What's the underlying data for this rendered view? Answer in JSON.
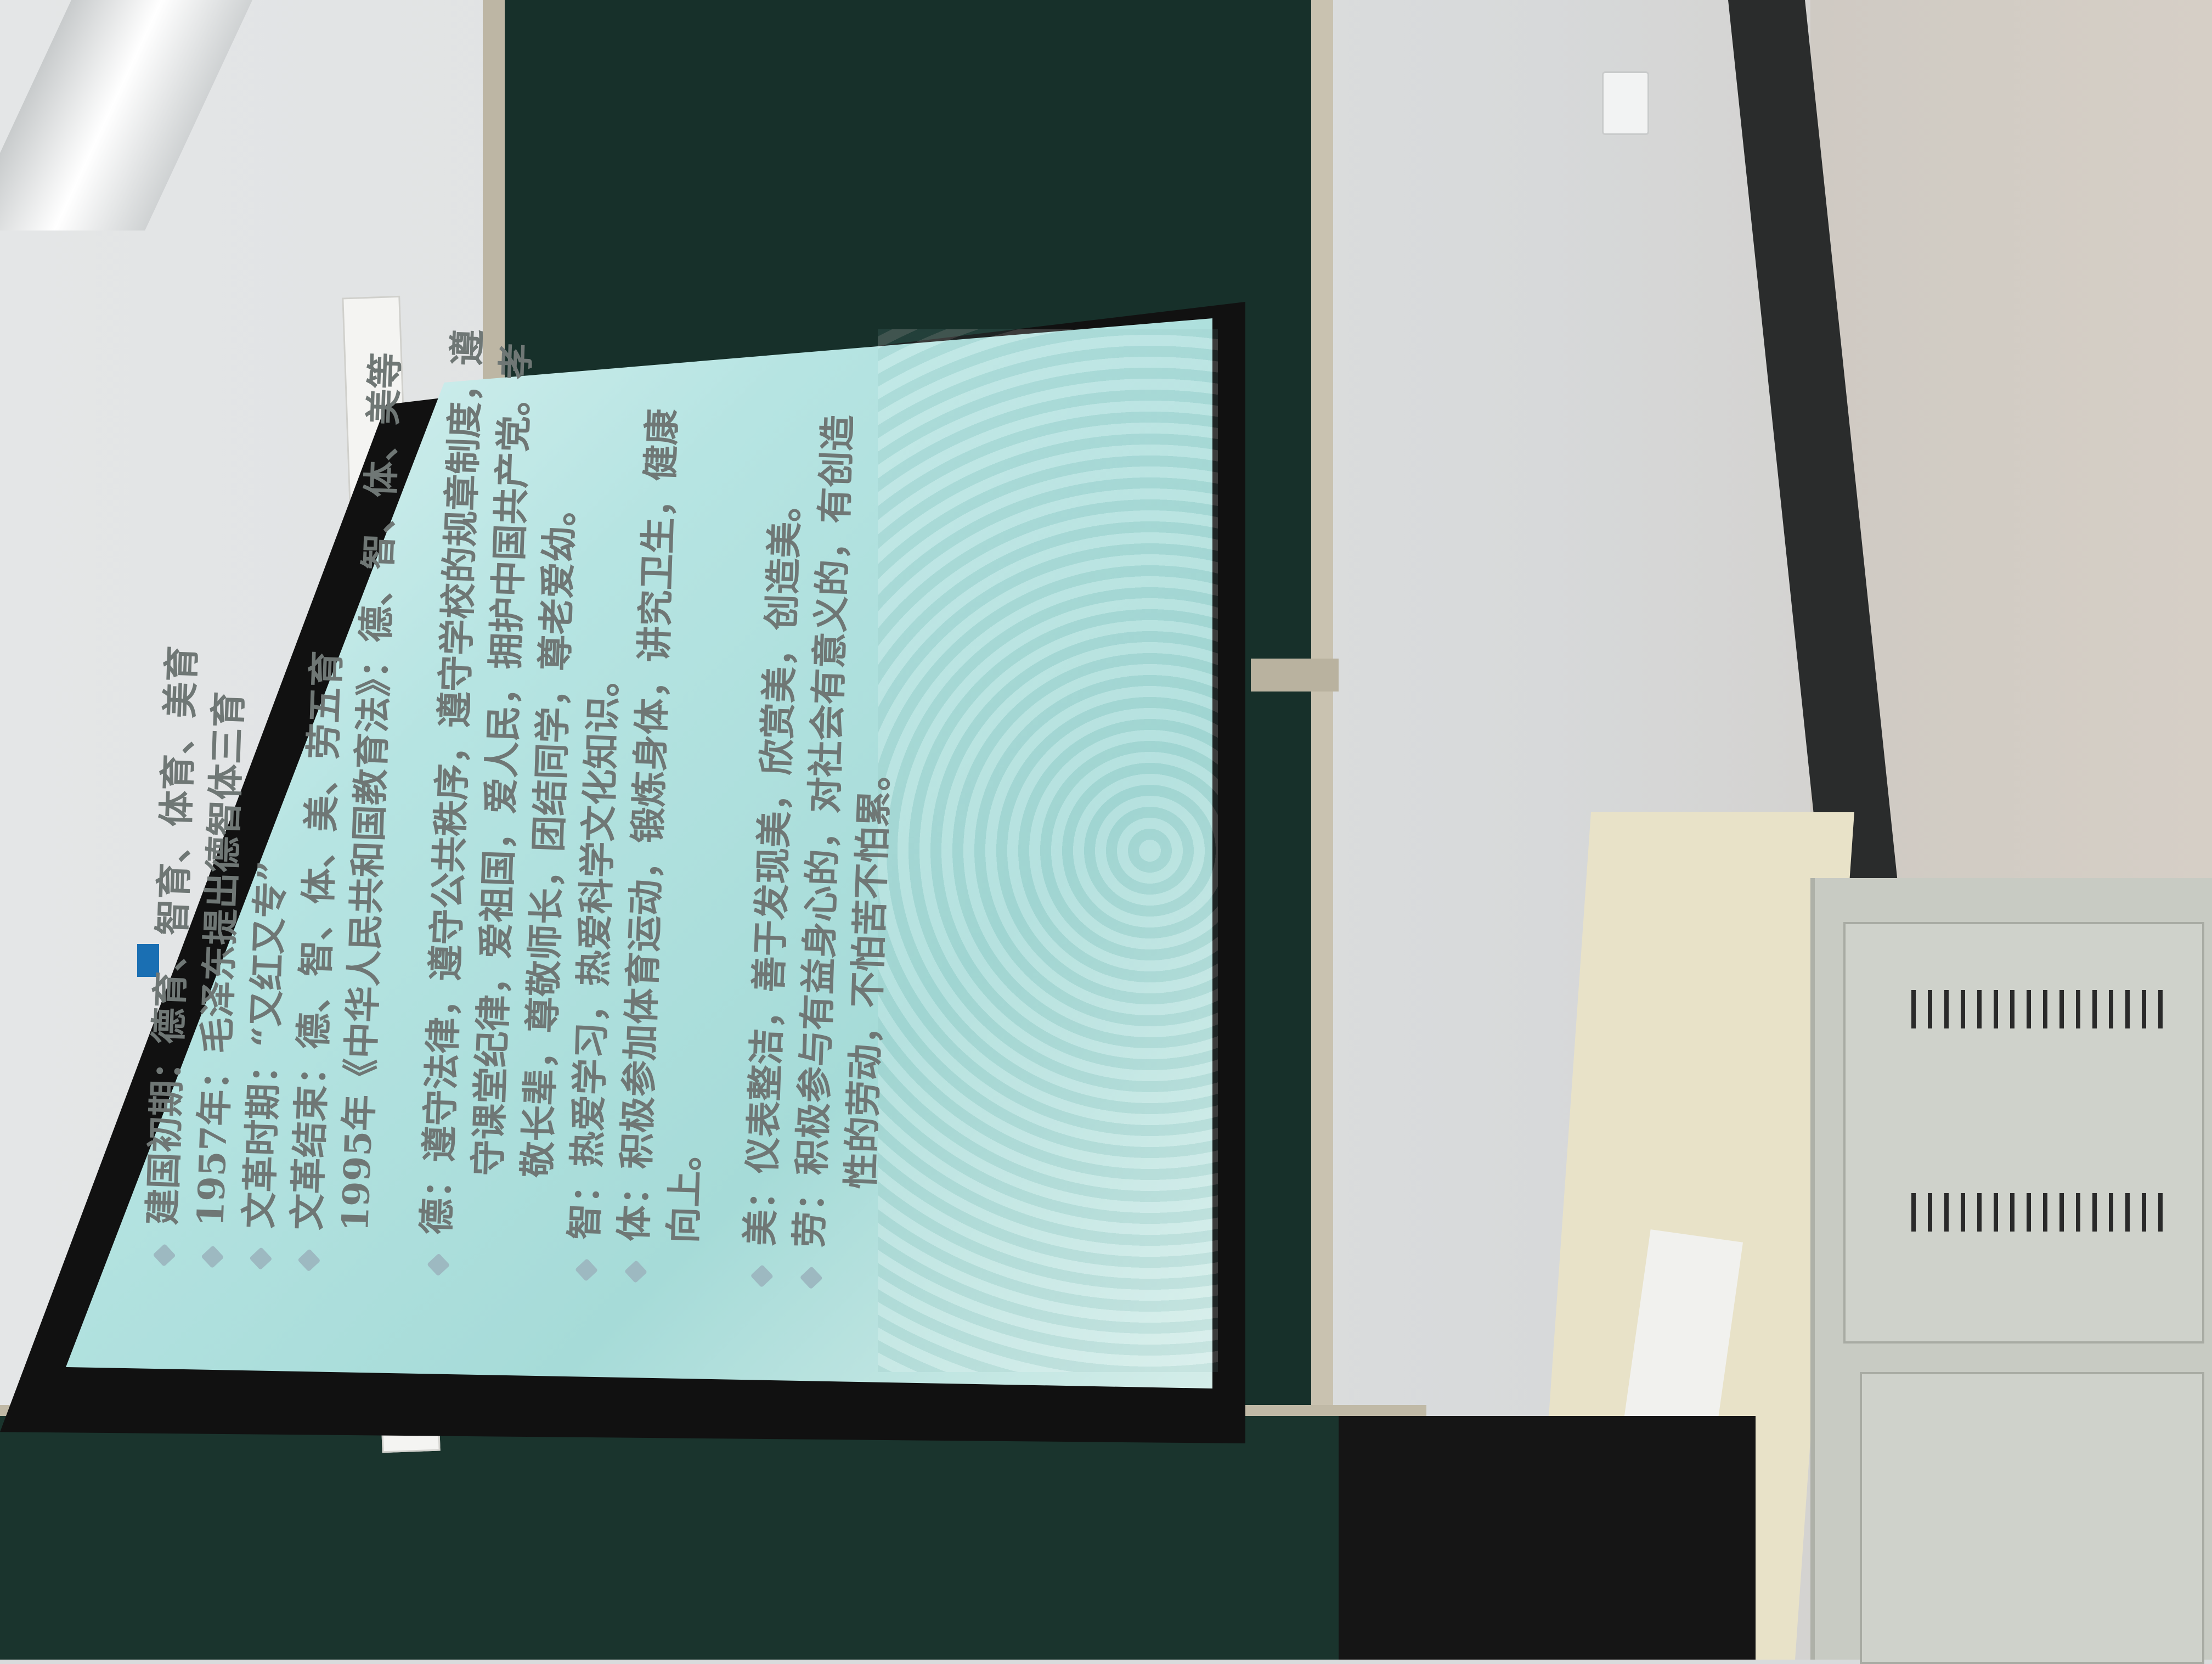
{
  "slide": {
    "lines": [
      {
        "bullet": true,
        "text": "建国初期：德育、智育、体育、美育",
        "size": "big"
      },
      {
        "bullet": true,
        "text": "1957年：毛泽东提出德智体三育",
        "size": "big"
      },
      {
        "bullet": true,
        "text": "文革时期：“又红又专”",
        "size": "big"
      },
      {
        "bullet": true,
        "text": "文革结束：德、智、体、美、劳五育",
        "size": "big"
      },
      {
        "bullet": false,
        "text": "1995年《中华人民共和国教育法》：德、智、体、美等",
        "size": "big"
      }
    ],
    "de": {
      "label": "德：",
      "l1": "遵守法律，遵守公共秩序，遵守学校的规章制度，遵",
      "l2": "守课堂纪律，爱祖国，爱人民，拥护中国共产党。孝",
      "l3": "敬长辈，尊敬师长，团结同学，尊老爱幼。"
    },
    "zhi": {
      "label": "智：",
      "text": "热爱学习，热爱科学文化知识。"
    },
    "ti": {
      "label": "体：",
      "l1": "积极参加体育运动，锻炼身体，讲究卫生，健康",
      "l2": "向上。"
    },
    "mei": {
      "label": "美：",
      "text": "仪表整洁，善于发现美，欣赏美，创造美。"
    },
    "lao": {
      "label": "劳：",
      "l1": "积极参与有益身心的，对社会有意义的，有创造",
      "l2": "性的劳动，不怕苦不怕累。"
    }
  }
}
